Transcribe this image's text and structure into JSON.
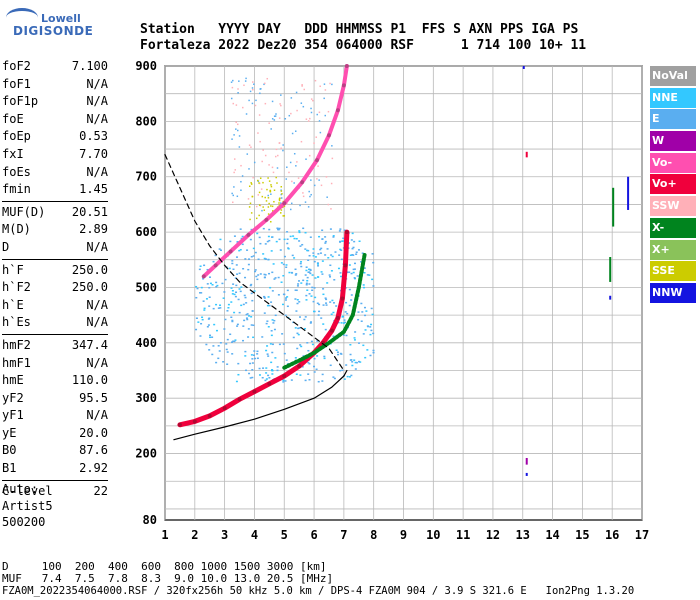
{
  "logo": {
    "brand": "Lowell",
    "product": "DIGISONDE"
  },
  "header": {
    "row1": "Station   YYYY DAY   DDD HHMMSS P1  FFS S AXN PPS IGA PS",
    "row2": "Fortaleza 2022 Dez20 354 064000 RSF      1 714 100 10+ 11"
  },
  "params": [
    {
      "label": "foF2",
      "value": "7.100"
    },
    {
      "label": "foF1",
      "value": "N/A"
    },
    {
      "label": "foF1p",
      "value": "N/A"
    },
    {
      "label": "foE",
      "value": "N/A"
    },
    {
      "label": "foEp",
      "value": "0.53"
    },
    {
      "label": "fxI",
      "value": "7.70"
    },
    {
      "label": "foEs",
      "value": "N/A"
    },
    {
      "label": "fmin",
      "value": "1.45"
    },
    {
      "label": "MUF(D)",
      "value": "20.51",
      "sep": true
    },
    {
      "label": "M(D)",
      "value": "2.89"
    },
    {
      "label": "D",
      "value": "N/A"
    },
    {
      "label": "h`F",
      "value": "250.0",
      "sep": true
    },
    {
      "label": "h`F2",
      "value": "250.0"
    },
    {
      "label": "h`E",
      "value": "N/A"
    },
    {
      "label": "h`Es",
      "value": "N/A"
    },
    {
      "label": "hmF2",
      "value": "347.4",
      "sep": true
    },
    {
      "label": "hmF1",
      "value": "N/A"
    },
    {
      "label": "hmE",
      "value": "110.0"
    },
    {
      "label": "yF2",
      "value": "95.5"
    },
    {
      "label": "yF1",
      "value": "N/A"
    },
    {
      "label": "yE",
      "value": "20.0"
    },
    {
      "label": "B0",
      "value": "87.6"
    },
    {
      "label": "B1",
      "value": "2.92"
    },
    {
      "label": "C-level",
      "value": "22",
      "sep": true
    }
  ],
  "auto": {
    "line1": "Auto:",
    "line2": "Artist5",
    "line3": "500200"
  },
  "footer": {
    "d_line": "D     100  200  400  600  800 1000 1500 3000 [km]",
    "muf_line": "MUF   7.4  7.5  7.8  8.3  9.0 10.0 13.0 20.5 [MHz]",
    "file_line": "FZA0M_2022354064000.RSF / 320fx256h 50 kHz 5.0 km / DPS-4 FZA0M 904 / 3.9 S 321.6 E   Ion2Png 1.3.20"
  },
  "legend": [
    {
      "label": "NoVal",
      "color": "#a0a0a0"
    },
    {
      "label": "NNE",
      "color": "#33c8ff"
    },
    {
      "label": "E",
      "color": "#5aaef0"
    },
    {
      "label": "W",
      "color": "#a000a8"
    },
    {
      "label": "Vo-",
      "color": "#ff4fb0"
    },
    {
      "label": "Vo+",
      "color": "#f0003c"
    },
    {
      "label": "SSW",
      "color": "#ffb0b8"
    },
    {
      "label": "X-",
      "color": "#00841e"
    },
    {
      "label": "X+",
      "color": "#8ac25a"
    },
    {
      "label": "SSE",
      "color": "#cccc00"
    },
    {
      "label": "NNW",
      "color": "#1414e0"
    }
  ],
  "chart_data": {
    "type": "scatter",
    "xlim": [
      1,
      17
    ],
    "ylim": [
      80,
      900
    ],
    "x_ticks": [
      "1",
      "2",
      "3",
      "4",
      "5",
      "6",
      "7",
      "8",
      "9",
      "10",
      "11",
      "12",
      "13",
      "14",
      "15",
      "16",
      "17"
    ],
    "y_ticks": [
      "80",
      "200",
      "300",
      "400",
      "500",
      "600",
      "700",
      "800",
      "900"
    ],
    "y_tick_values": [
      80,
      200,
      300,
      400,
      500,
      600,
      700,
      800,
      900
    ],
    "grid": true,
    "series": [
      {
        "name": "Vo+",
        "color": "#f0003c",
        "x": [
          1.5,
          2.0,
          2.5,
          3.0,
          3.5,
          4.0,
          4.5,
          5.0,
          5.5,
          6.0,
          6.3,
          6.6,
          6.8,
          6.95,
          7.05,
          7.1
        ],
        "y": [
          252,
          258,
          268,
          282,
          298,
          312,
          326,
          340,
          358,
          382,
          400,
          422,
          445,
          480,
          540,
          600
        ]
      },
      {
        "name": "Vo-",
        "color": "#ff4fb0",
        "x": [
          2.3,
          2.7,
          3.2,
          3.8,
          4.4,
          5.0,
          5.6,
          6.1,
          6.5,
          6.8,
          7.0,
          7.1
        ],
        "y": [
          520,
          540,
          565,
          595,
          622,
          652,
          690,
          730,
          775,
          820,
          865,
          900
        ]
      },
      {
        "name": "X-",
        "color": "#00841e",
        "x": [
          5.0,
          5.5,
          6.0,
          6.5,
          7.0,
          7.3,
          7.5,
          7.7
        ],
        "y": [
          355,
          368,
          382,
          400,
          420,
          450,
          500,
          560
        ]
      },
      {
        "name": "fit",
        "color": "#000000",
        "x": [
          1.3,
          2.0,
          3.0,
          4.0,
          5.0,
          6.0,
          6.6,
          7.0,
          7.1
        ],
        "y": [
          225,
          235,
          248,
          262,
          280,
          300,
          320,
          340,
          350
        ]
      },
      {
        "name": "dashed",
        "color": "#000000",
        "x": [
          1.0,
          1.5,
          2.0,
          2.5,
          3.0,
          3.5,
          4.0,
          4.5,
          5.0,
          5.5,
          6.0,
          6.5,
          7.0
        ],
        "y": [
          740,
          680,
          620,
          575,
          540,
          510,
          490,
          470,
          450,
          430,
          410,
          390,
          350
        ]
      }
    ]
  }
}
